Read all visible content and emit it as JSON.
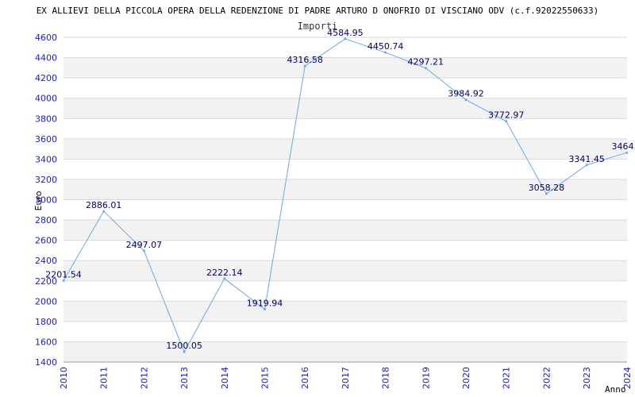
{
  "chart_data": {
    "type": "line",
    "title": "EX ALLIEVI DELLA PICCOLA OPERA DELLA REDENZIONE DI PADRE ARTURO D ONOFRIO DI VISCIANO ODV (c.f.92022550633)",
    "xlabel": "Anno",
    "ylabel": "Euro",
    "x": [
      "2010",
      "2011",
      "2012",
      "2013",
      "2014",
      "2015",
      "2016",
      "2017",
      "2018",
      "2019",
      "2020",
      "2021",
      "2022",
      "2023",
      "2024"
    ],
    "series": [
      {
        "name": "Importi",
        "values": [
          2201.54,
          2886.01,
          2497.07,
          1500.05,
          2222.14,
          1919.94,
          4316.58,
          4584.95,
          4450.74,
          4297.21,
          3984.92,
          3772.97,
          3058.28,
          3341.45,
          3464.0
        ],
        "labels": [
          "2201.54",
          "2886.01",
          "2497.07",
          "1500.05",
          "2222.14",
          "1919.94",
          "4316.58",
          "4584.95",
          "4450.74",
          "4297.21",
          "3984.92",
          "3772.97",
          "3058.28",
          "3341.45",
          "3464.0"
        ]
      }
    ],
    "ylim": [
      1400,
      4600
    ],
    "yticks": [
      1400,
      1600,
      1800,
      2000,
      2200,
      2400,
      2600,
      2800,
      3000,
      3200,
      3400,
      3600,
      3800,
      4000,
      4200,
      4400,
      4600
    ],
    "grid": true,
    "colors": {
      "line": "#6aaae6",
      "band": "#f2f2f2",
      "gridline": "#d9d9d9",
      "tick_text": "#1a1acc",
      "label_text": "#000066"
    }
  }
}
